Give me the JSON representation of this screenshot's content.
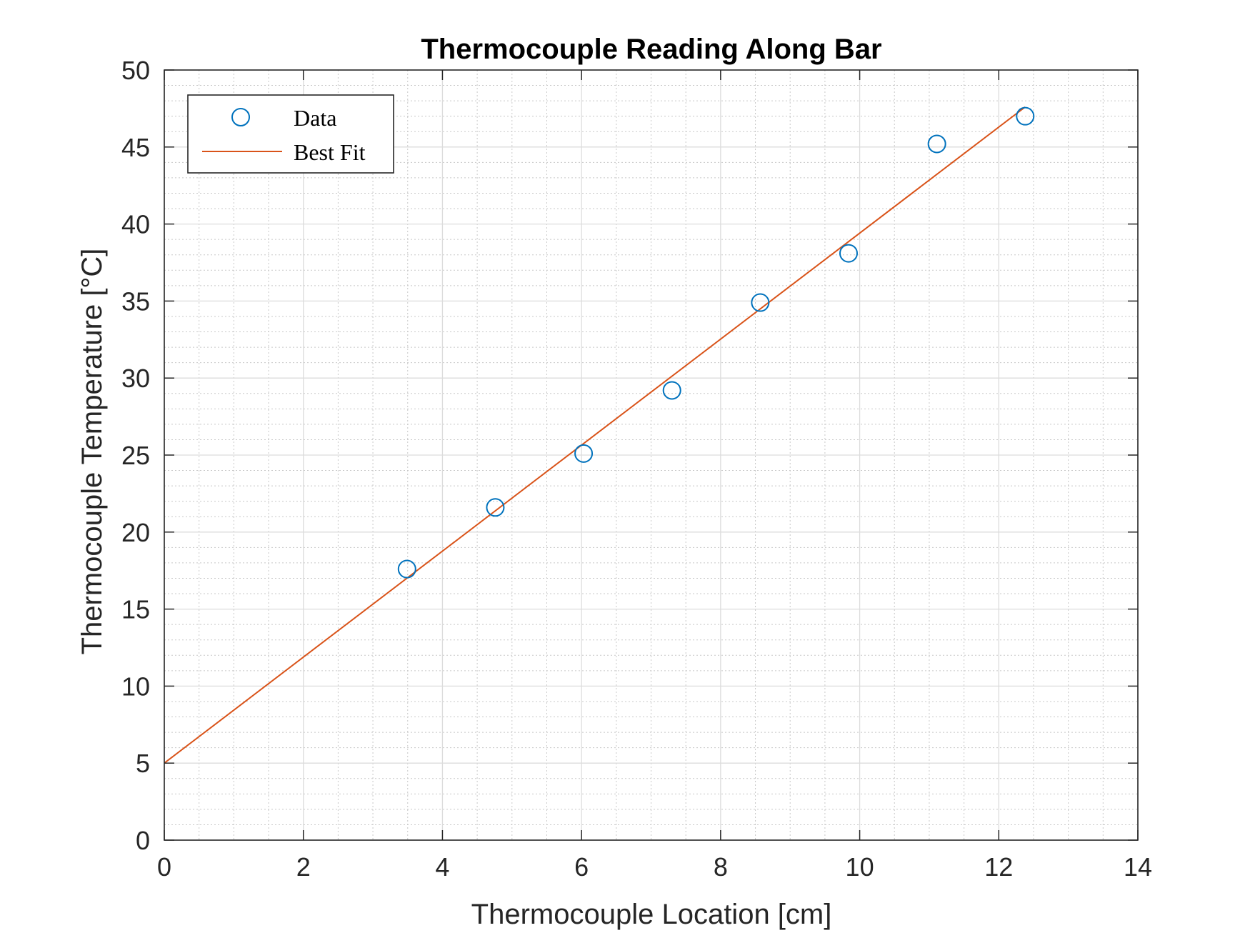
{
  "colors": {
    "data_marker": "#0072bd",
    "fit_line": "#d95319",
    "axis": "#262626",
    "grid_major": "#dcdcdc",
    "grid_minor": "#c8c8c8",
    "legend_border": "#262626"
  },
  "chart_data": {
    "type": "scatter",
    "title": "Thermocouple Reading Along Bar",
    "xlabel": "Thermocouple Location [cm]",
    "ylabel": "Thermocouple Temperature [°C]",
    "xlim": [
      0,
      14
    ],
    "ylim": [
      0,
      50
    ],
    "xticks": [
      0,
      2,
      4,
      6,
      8,
      10,
      12,
      14
    ],
    "yticks": [
      0,
      5,
      10,
      15,
      20,
      25,
      30,
      35,
      40,
      45,
      50
    ],
    "grid": true,
    "minor_grid": true,
    "legend": {
      "position": "top-left",
      "entries": [
        "Data",
        "Best Fit"
      ]
    },
    "series": [
      {
        "name": "Data",
        "type": "scatter",
        "marker": "open-circle",
        "x": [
          3.49,
          4.76,
          6.03,
          7.3,
          8.57,
          9.84,
          11.11,
          12.38
        ],
        "y": [
          17.6,
          21.6,
          25.1,
          29.2,
          34.9,
          38.1,
          45.2,
          47.0
        ]
      },
      {
        "name": "Best Fit",
        "type": "line",
        "x": [
          0,
          12.38
        ],
        "y": [
          5.0,
          47.6
        ]
      }
    ]
  }
}
